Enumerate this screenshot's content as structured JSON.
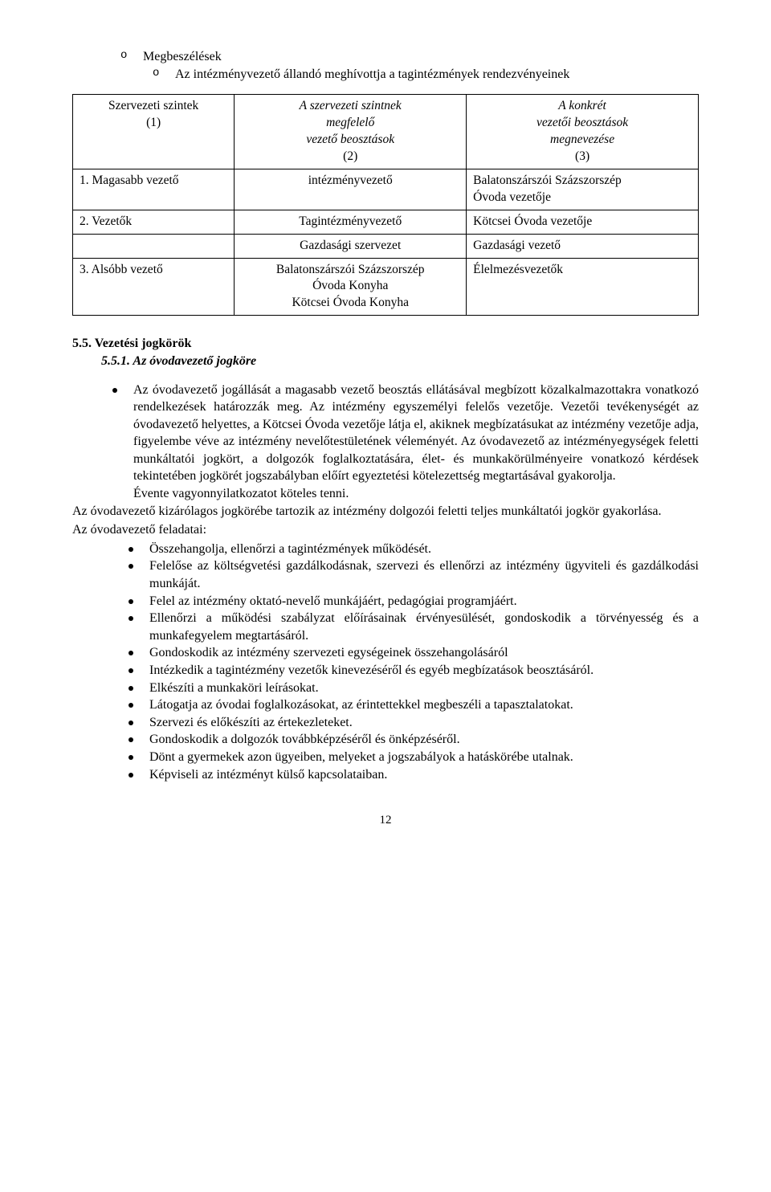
{
  "topList": {
    "item1": "Megbeszélések",
    "item2": "Az intézményvezető állandó meghívottja a tagintézmények rendezvényeinek"
  },
  "table": {
    "header": {
      "c1a": "Szervezeti szintek",
      "c1b": "(1)",
      "c2a": "A szervezeti szintnek",
      "c2b": "megfelelő",
      "c2c": "vezető beosztások",
      "c2d": "(2)",
      "c3a": "A konkrét",
      "c3b": "vezetői beosztások",
      "c3c": "megnevezése",
      "c3d": "(3)"
    },
    "r1": {
      "c1": "1. Magasabb vezető",
      "c2": "intézményvezető",
      "c3a": "Balatonszárszói Százszorszép",
      "c3b": "Óvoda vezetője"
    },
    "r2": {
      "c1": "2. Vezetők",
      "c2": "Tagintézményvezető",
      "c3": "Kötcsei Óvoda vezetője"
    },
    "r3": {
      "c2": "Gazdasági szervezet",
      "c3": "Gazdasági vezető"
    },
    "r4": {
      "c1": "3. Alsóbb vezető",
      "c2a": "Balatonszárszói Százszorszép",
      "c2b": "Óvoda Konyha",
      "c2c": "Kötcsei Óvoda Konyha",
      "c3": "Élelmezésvezetők"
    }
  },
  "section": {
    "heading": "5.5. Vezetési jogkörök",
    "subheading": "5.5.1. Az óvodavezető jogköre"
  },
  "mainBullet": "Az óvodavezető jogállását a magasabb vezető beosztás ellátásával megbízott közalkalmazottakra vonatkozó rendelkezések határozzák meg. Az intézmény egyszemélyi felelős vezetője. Vezetői tevékenységét az óvodavezető helyettes, a Kötcsei Óvoda vezetője látja el, akiknek megbízatásukat az intézmény vezetője adja, figyelembe véve az intézmény nevelőtestületének véleményét. Az óvodavezető az intézményegységek feletti munkáltatói jogkört, a dolgozók foglalkoztatására, élet- és munkakörülményeire vonatkozó kérdések tekintetében jogkörét jogszabályban előírt egyeztetési kötelezettség megtartásával gyakorolja.",
  "mainBulletLine2": "Évente vagyonnyilatkozatot köteles tenni.",
  "para1": "Az óvodavezető kizárólagos jogkörébe tartozik az intézmény dolgozói feletti teljes munkáltatói jogkör gyakorlása.",
  "para2": "Az óvodavezető feladatai:",
  "innerBullets": {
    "b1": "Összehangolja, ellenőrzi a tagintézmények működését.",
    "b2": "Felelőse az költségvetési gazdálkodásnak, szervezi és ellenőrzi az intézmény ügyviteli és gazdálkodási munkáját.",
    "b3": "Felel az intézmény oktató-nevelő munkájáért, pedagógiai programjáért.",
    "b4": "Ellenőrzi a működési szabályzat előírásainak érvényesülését, gondoskodik a törvényesség és a munkafegyelem megtartásáról.",
    "b5": "Gondoskodik az intézmény szervezeti egységeinek összehangolásáról",
    "b6": "Intézkedik a tagintézmény vezetők kinevezéséről és egyéb megbízatások beosztásáról.",
    "b7": "Elkészíti a munkaköri leírásokat.",
    "b8": "Látogatja az óvodai foglalkozásokat, az érintettekkel megbeszéli a tapasztalatokat.",
    "b9": "Szervezi és előkészíti az értekezleteket.",
    "b10": "Gondoskodik a dolgozók továbbképzéséről és önképzéséről.",
    "b11": "Dönt a gyermekek azon ügyeiben, melyeket a jogszabályok a hatáskörébe utalnak.",
    "b12": "Képviseli az intézményt külső kapcsolataiban."
  },
  "pageNumber": "12"
}
